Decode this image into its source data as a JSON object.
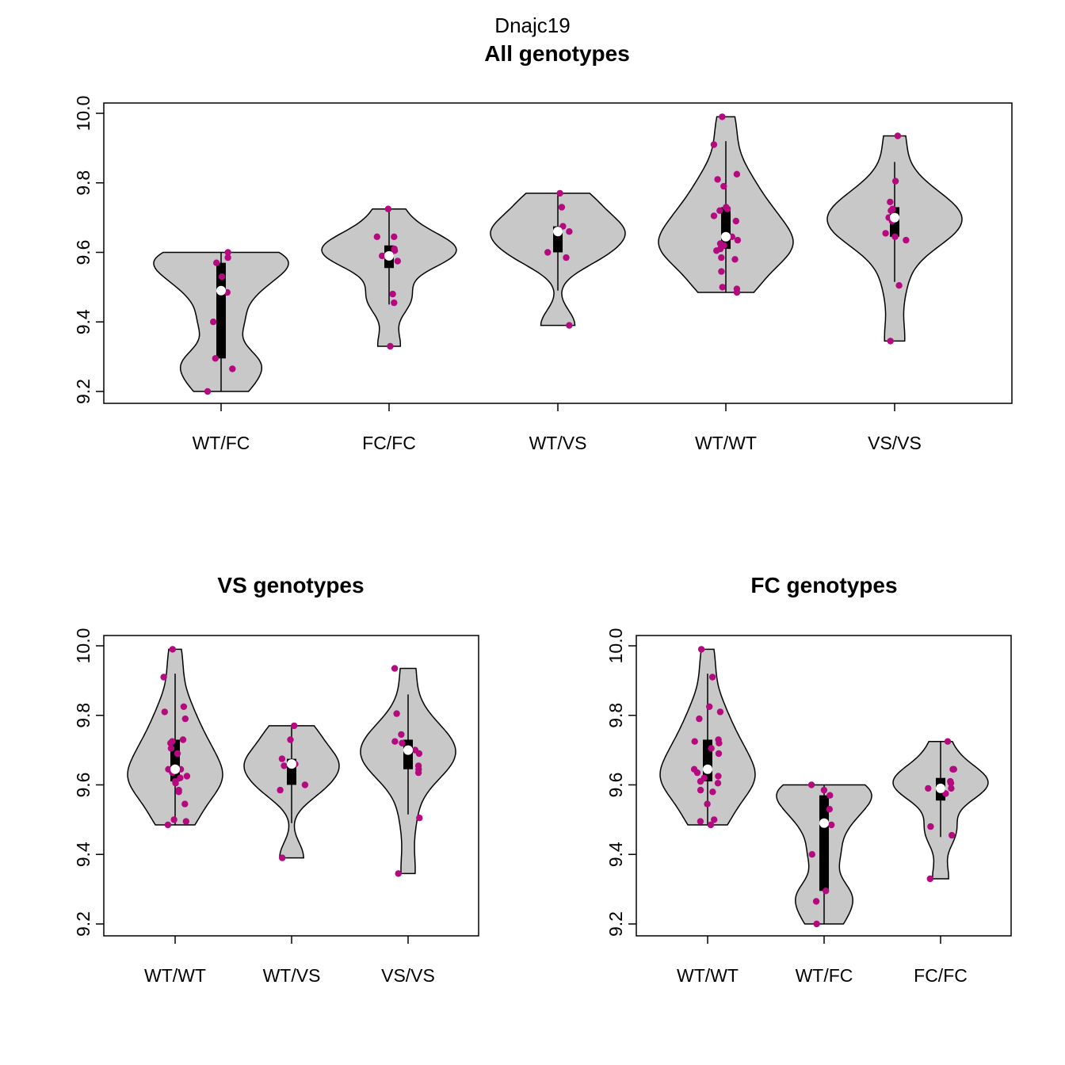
{
  "figure": {
    "title": "Dnajc19"
  },
  "colors": {
    "violin_fill": "#c8c8c8",
    "violin_stroke": "#000000",
    "point": "#b5097f",
    "median": "#ffffff",
    "box": "#000000"
  },
  "chart_data": [
    {
      "type": "violin",
      "title": "All genotypes",
      "xlabel": "",
      "ylabel": "",
      "ylim": [
        9.17,
        10.03
      ],
      "yticks": [
        "9.2",
        "9.4",
        "9.6",
        "9.8",
        "10.0"
      ],
      "categories": [
        "WT/FC",
        "FC/FC",
        "WT/VS",
        "WT/WT",
        "VS/VS"
      ],
      "groups": [
        {
          "name": "WT/FC",
          "values": [
            9.2,
            9.265,
            9.295,
            9.4,
            9.485,
            9.53,
            9.57,
            9.585,
            9.6
          ],
          "median": 9.49,
          "q1": 9.295,
          "q3": 9.57,
          "whisker": [
            9.2,
            9.6
          ]
        },
        {
          "name": "FC/FC",
          "values": [
            9.33,
            9.455,
            9.48,
            9.575,
            9.59,
            9.59,
            9.605,
            9.61,
            9.645,
            9.645,
            9.725
          ],
          "median": 9.59,
          "q1": 9.555,
          "q3": 9.62,
          "whisker": [
            9.45,
            9.725
          ]
        },
        {
          "name": "WT/VS",
          "values": [
            9.39,
            9.585,
            9.6,
            9.655,
            9.66,
            9.675,
            9.73,
            9.77
          ],
          "median": 9.66,
          "q1": 9.6,
          "q3": 9.675,
          "whisker": [
            9.49,
            9.77
          ]
        },
        {
          "name": "WT/WT",
          "values": [
            9.485,
            9.495,
            9.5,
            9.545,
            9.58,
            9.585,
            9.605,
            9.61,
            9.62,
            9.625,
            9.635,
            9.645,
            9.645,
            9.69,
            9.705,
            9.72,
            9.725,
            9.73,
            9.79,
            9.81,
            9.825,
            9.91,
            9.99
          ],
          "median": 9.645,
          "q1": 9.61,
          "q3": 9.73,
          "whisker": [
            9.485,
            9.92
          ]
        },
        {
          "name": "VS/VS",
          "values": [
            9.345,
            9.505,
            9.635,
            9.645,
            9.655,
            9.69,
            9.7,
            9.72,
            9.725,
            9.745,
            9.805,
            9.935
          ],
          "median": 9.7,
          "q1": 9.645,
          "q3": 9.73,
          "whisker": [
            9.515,
            9.86
          ]
        }
      ]
    },
    {
      "type": "violin",
      "title": "VS genotypes",
      "xlabel": "",
      "ylabel": "",
      "ylim": [
        9.17,
        10.03
      ],
      "yticks": [
        "9.2",
        "9.4",
        "9.6",
        "9.8",
        "10.0"
      ],
      "categories": [
        "WT/WT",
        "WT/VS",
        "VS/VS"
      ],
      "groups": [
        {
          "name": "WT/WT",
          "values": [
            9.485,
            9.495,
            9.5,
            9.545,
            9.58,
            9.585,
            9.605,
            9.61,
            9.62,
            9.625,
            9.635,
            9.645,
            9.645,
            9.69,
            9.705,
            9.72,
            9.725,
            9.73,
            9.79,
            9.81,
            9.825,
            9.91,
            9.99
          ],
          "median": 9.645,
          "q1": 9.61,
          "q3": 9.73,
          "whisker": [
            9.485,
            9.92
          ]
        },
        {
          "name": "WT/VS",
          "values": [
            9.39,
            9.585,
            9.6,
            9.655,
            9.66,
            9.675,
            9.73,
            9.77
          ],
          "median": 9.66,
          "q1": 9.6,
          "q3": 9.675,
          "whisker": [
            9.49,
            9.77
          ]
        },
        {
          "name": "VS/VS",
          "values": [
            9.345,
            9.505,
            9.635,
            9.645,
            9.655,
            9.69,
            9.7,
            9.72,
            9.725,
            9.745,
            9.805,
            9.935
          ],
          "median": 9.7,
          "q1": 9.645,
          "q3": 9.73,
          "whisker": [
            9.515,
            9.86
          ]
        }
      ]
    },
    {
      "type": "violin",
      "title": "FC genotypes",
      "xlabel": "",
      "ylabel": "",
      "ylim": [
        9.17,
        10.03
      ],
      "yticks": [
        "9.2",
        "9.4",
        "9.6",
        "9.8",
        "10.0"
      ],
      "categories": [
        "WT/WT",
        "WT/FC",
        "FC/FC"
      ],
      "groups": [
        {
          "name": "WT/WT",
          "values": [
            9.485,
            9.495,
            9.5,
            9.545,
            9.58,
            9.585,
            9.605,
            9.61,
            9.62,
            9.625,
            9.635,
            9.645,
            9.645,
            9.69,
            9.705,
            9.72,
            9.725,
            9.73,
            9.79,
            9.81,
            9.825,
            9.91,
            9.99
          ],
          "median": 9.645,
          "q1": 9.61,
          "q3": 9.73,
          "whisker": [
            9.485,
            9.92
          ]
        },
        {
          "name": "WT/FC",
          "values": [
            9.2,
            9.265,
            9.295,
            9.4,
            9.485,
            9.53,
            9.57,
            9.585,
            9.6
          ],
          "median": 9.49,
          "q1": 9.295,
          "q3": 9.57,
          "whisker": [
            9.2,
            9.6
          ]
        },
        {
          "name": "FC/FC",
          "values": [
            9.33,
            9.455,
            9.48,
            9.575,
            9.59,
            9.59,
            9.605,
            9.61,
            9.645,
            9.645,
            9.725
          ],
          "median": 9.59,
          "q1": 9.555,
          "q3": 9.62,
          "whisker": [
            9.45,
            9.725
          ]
        }
      ]
    }
  ]
}
